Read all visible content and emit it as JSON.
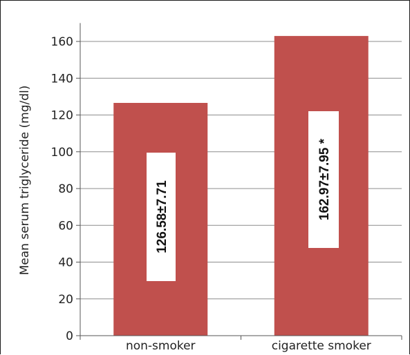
{
  "chart_data": {
    "type": "bar",
    "title": "",
    "xlabel": "",
    "ylabel": "Mean serum triglyceride (mg/dl)",
    "ylim": [
      0,
      170
    ],
    "yticks": [
      0,
      20,
      40,
      60,
      80,
      100,
      120,
      140,
      160
    ],
    "grid": true,
    "categories": [
      "non-smoker",
      "cigarette smoker"
    ],
    "values": [
      126.58,
      162.97
    ],
    "data_labels": [
      "126.58±7.71",
      "162.97±7.95 *"
    ],
    "bar_color": "#c0504d",
    "grid_color": "#8c8c8c"
  }
}
